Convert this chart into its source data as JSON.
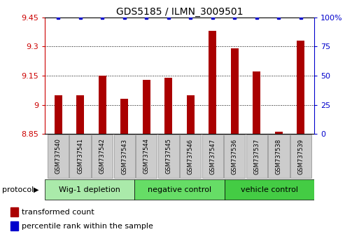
{
  "title": "GDS5185 / ILMN_3009501",
  "samples": [
    "GSM737540",
    "GSM737541",
    "GSM737542",
    "GSM737543",
    "GSM737544",
    "GSM737545",
    "GSM737546",
    "GSM737547",
    "GSM737536",
    "GSM737537",
    "GSM737538",
    "GSM737539"
  ],
  "transformed_counts": [
    9.05,
    9.05,
    9.15,
    9.03,
    9.13,
    9.14,
    9.05,
    9.38,
    9.29,
    9.17,
    8.86,
    9.33
  ],
  "percentile_ranks": [
    100,
    100,
    100,
    100,
    100,
    100,
    100,
    100,
    100,
    100,
    100,
    100
  ],
  "groups": [
    {
      "label": "Wig-1 depletion",
      "start": 0,
      "end": 3,
      "color": "#aaeaaa"
    },
    {
      "label": "negative control",
      "start": 4,
      "end": 7,
      "color": "#66dd66"
    },
    {
      "label": "vehicle control",
      "start": 8,
      "end": 11,
      "color": "#44cc44"
    }
  ],
  "ymin": 8.85,
  "ymax": 9.45,
  "yticks": [
    8.85,
    9.0,
    9.15,
    9.3,
    9.45
  ],
  "ytick_labels": [
    "8.85",
    "9",
    "9.15",
    "9.3",
    "9.45"
  ],
  "y2ticks": [
    0,
    25,
    50,
    75,
    100
  ],
  "y2tick_labels": [
    "0",
    "25",
    "50",
    "75",
    "100%"
  ],
  "bar_color": "#aa0000",
  "dot_color": "#0000cc",
  "bar_bottom": 8.85,
  "background_color": "#ffffff",
  "legend_items": [
    {
      "color": "#aa0000",
      "label": "transformed count"
    },
    {
      "color": "#0000cc",
      "label": "percentile rank within the sample"
    }
  ],
  "sample_box_color": "#cccccc",
  "sample_box_edge": "#888888",
  "grid_lines": [
    9.0,
    9.15,
    9.3
  ]
}
